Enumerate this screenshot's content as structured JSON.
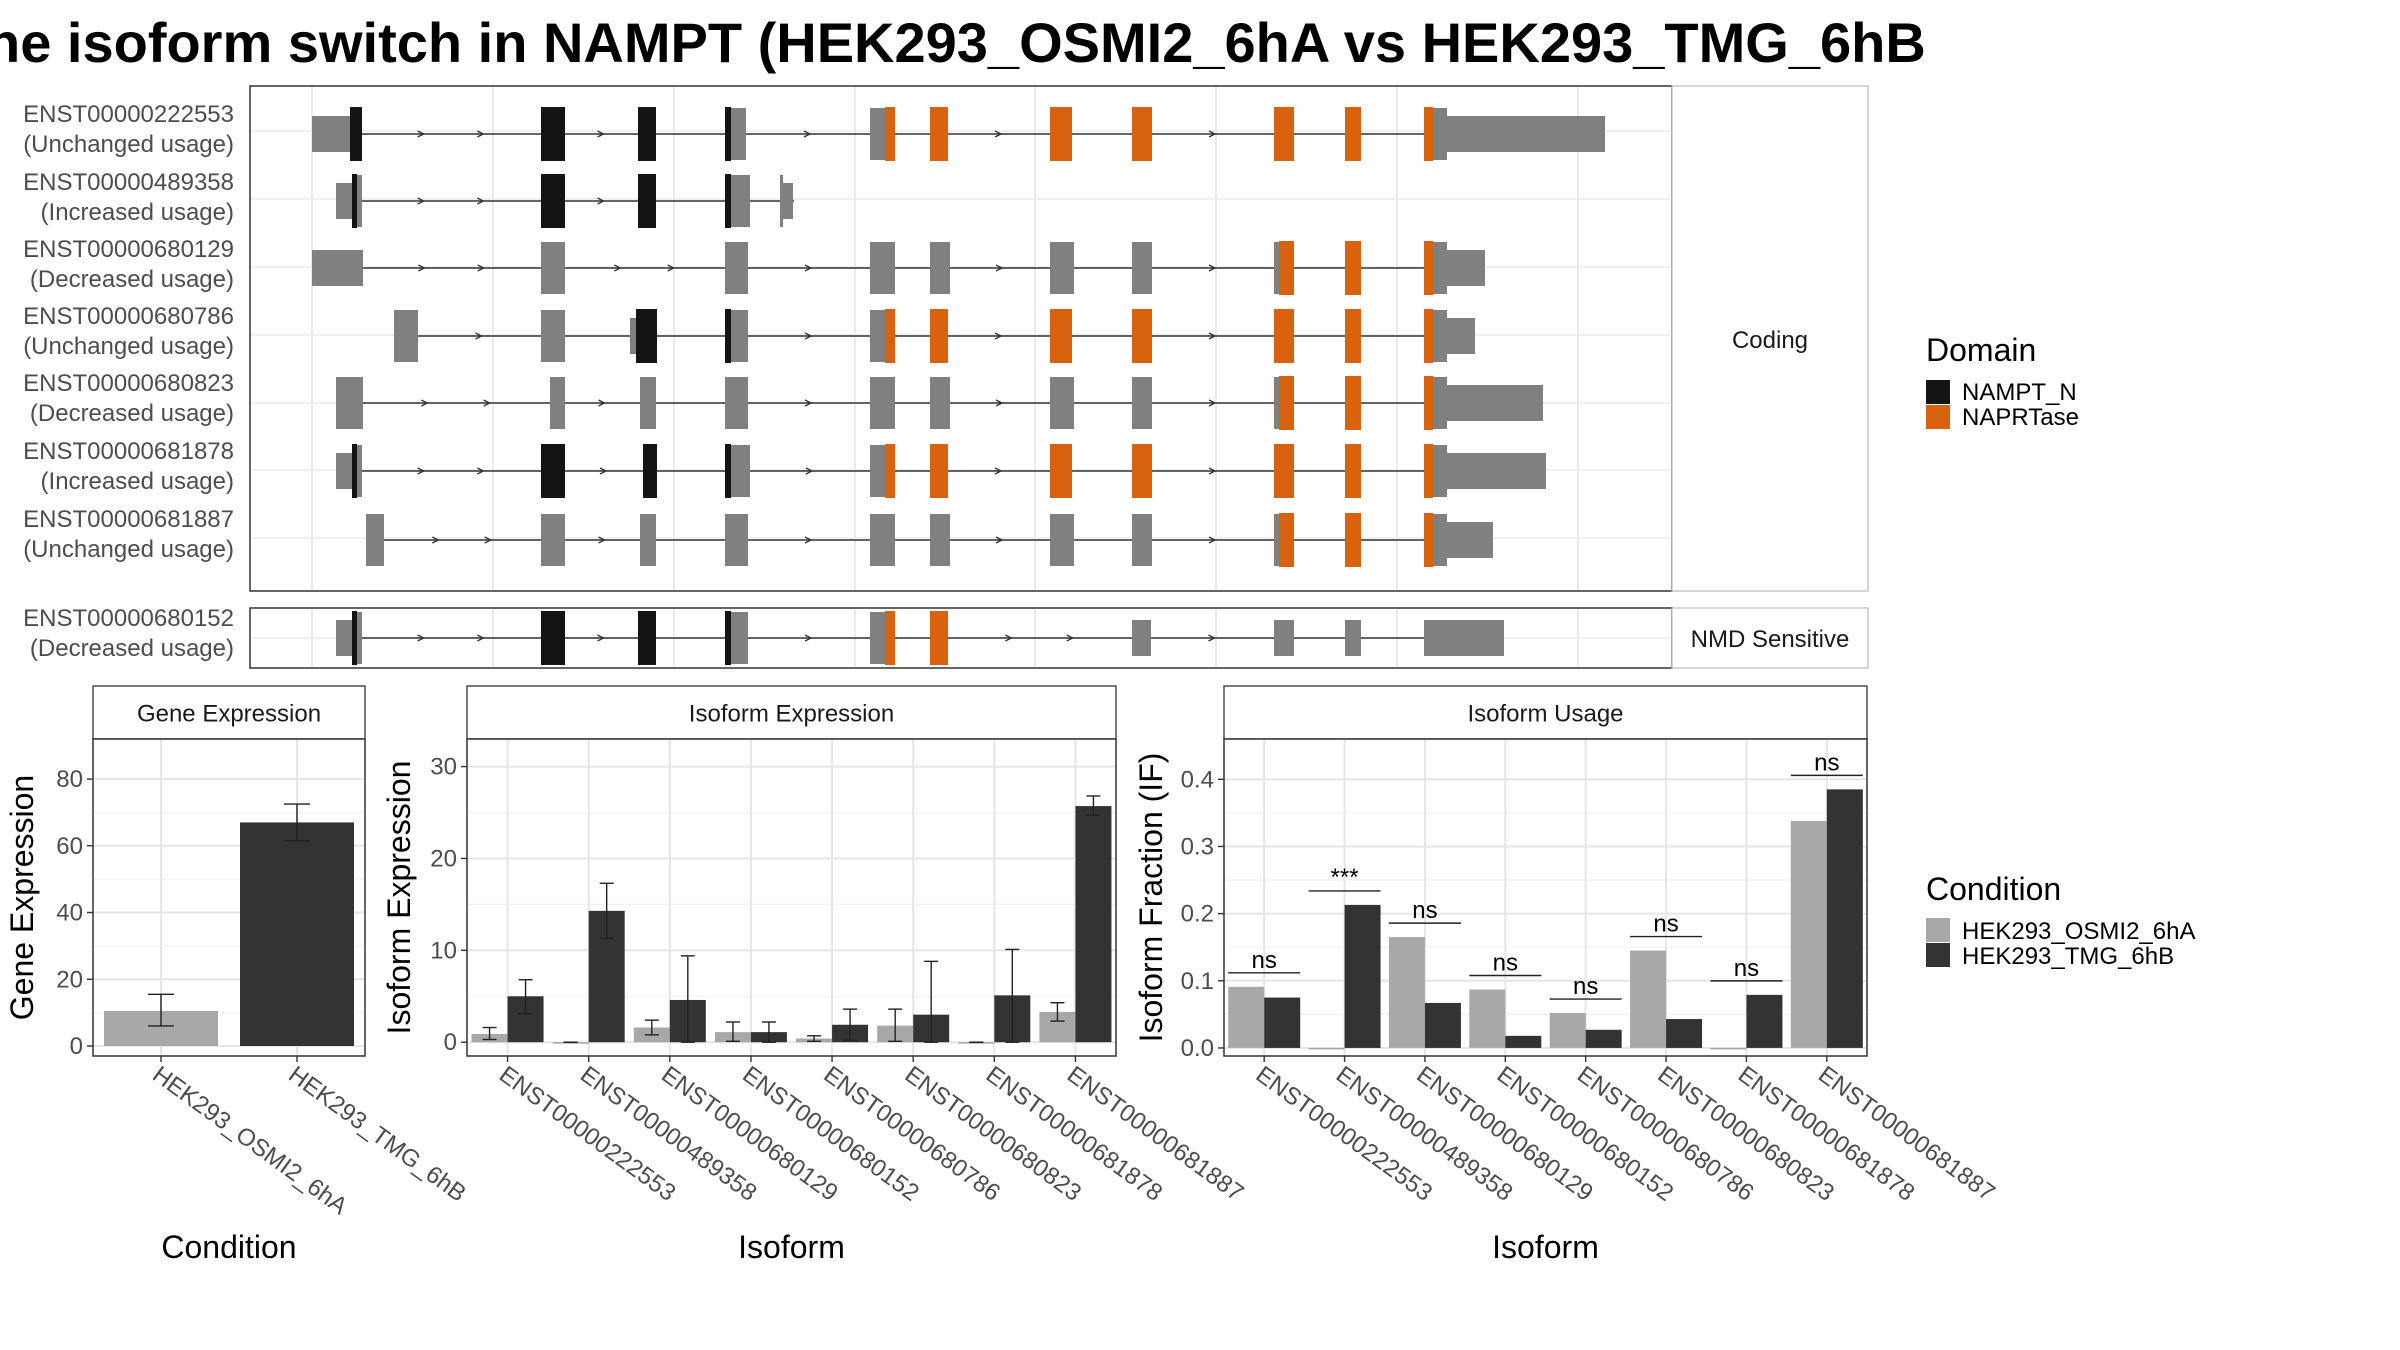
{
  "title": "he isoform switch in NAMPT (HEK293_OSMI2_6hA vs HEK293_TMG_6hB",
  "colors": {
    "cond_a": "#a8a8a8",
    "cond_b": "#333333",
    "nampt_n": "#141414",
    "naprtase": "#d9620f",
    "noncoding": "#808080"
  },
  "structure": {
    "strip_coding": "Coding",
    "strip_nmd": "NMD Sensitive",
    "coding": [
      {
        "id": "ENST00000222553",
        "usage": "(Unchanged usage)"
      },
      {
        "id": "ENST00000489358",
        "usage": "(Increased usage)"
      },
      {
        "id": "ENST00000680129",
        "usage": "(Decreased usage)"
      },
      {
        "id": "ENST00000680786",
        "usage": "(Unchanged usage)"
      },
      {
        "id": "ENST00000680823",
        "usage": "(Decreased usage)"
      },
      {
        "id": "ENST00000681878",
        "usage": "(Increased usage)"
      },
      {
        "id": "ENST00000681887",
        "usage": "(Unchanged usage)"
      }
    ],
    "nmd": [
      {
        "id": "ENST00000680152",
        "usage": "(Decreased usage)"
      }
    ]
  },
  "legend_domain": {
    "title": "Domain",
    "items": [
      {
        "label": "NAMPT_N",
        "color": "#141414"
      },
      {
        "label": "NAPRTase",
        "color": "#d9620f"
      }
    ]
  },
  "legend_condition": {
    "title": "Condition",
    "items": [
      {
        "label": "HEK293_OSMI2_6hA",
        "color": "#a8a8a8"
      },
      {
        "label": "HEK293_TMG_6hB",
        "color": "#333333"
      }
    ]
  },
  "chart_data": [
    {
      "type": "bar",
      "panel": "Gene Expression",
      "xlabel": "Condition",
      "ylabel": "Gene Expression",
      "categories": [
        "HEK293_OSMI2_6hA",
        "HEK293_TMG_6hB"
      ],
      "values": [
        10.5,
        67
      ],
      "error_low": [
        6,
        61.5
      ],
      "error_high": [
        15.5,
        72.5
      ],
      "ylim": [
        -3,
        92
      ],
      "yticks": [
        0,
        20,
        40,
        60,
        80
      ]
    },
    {
      "type": "bar",
      "panel": "Isoform Expression",
      "xlabel": "Isoform",
      "ylabel": "Isoform Expression",
      "categories": [
        "ENST00000222553",
        "ENST00000489358",
        "ENST00000680129",
        "ENST00000680152",
        "ENST00000680786",
        "ENST00000680823",
        "ENST00000681878",
        "ENST00000681887"
      ],
      "series": [
        {
          "name": "HEK293_OSMI2_6hA",
          "values": [
            0.9,
            0,
            1.6,
            1.1,
            0.4,
            1.8,
            0,
            3.3
          ],
          "error_low": [
            0.3,
            0,
            0.8,
            0.1,
            0.1,
            0.1,
            0,
            2.3
          ],
          "error_high": [
            1.6,
            0,
            2.4,
            2.2,
            0.7,
            3.6,
            0,
            4.3
          ]
        },
        {
          "name": "HEK293_TMG_6hB",
          "values": [
            5,
            14.3,
            4.6,
            1.1,
            1.9,
            3,
            5.1,
            25.7
          ],
          "error_low": [
            3.1,
            11.3,
            0,
            0,
            0.2,
            0,
            0,
            24.7
          ],
          "error_high": [
            6.8,
            17.3,
            9.4,
            2.2,
            3.6,
            8.8,
            10.1,
            26.8
          ]
        }
      ],
      "ylim": [
        -1.5,
        33
      ],
      "yticks": [
        0,
        10,
        20,
        30
      ]
    },
    {
      "type": "bar",
      "panel": "Isoform Usage",
      "xlabel": "Isoform",
      "ylabel": "Isoform Fraction (IF)",
      "categories": [
        "ENST00000222553",
        "ENST00000489358",
        "ENST00000680129",
        "ENST00000680152",
        "ENST00000680786",
        "ENST00000680823",
        "ENST00000681878",
        "ENST00000681887"
      ],
      "series": [
        {
          "name": "HEK293_OSMI2_6hA",
          "values": [
            0.091,
            0,
            0.165,
            0.087,
            0.052,
            0.145,
            0,
            0.338
          ]
        },
        {
          "name": "HEK293_TMG_6hB",
          "values": [
            0.075,
            0.213,
            0.067,
            0.018,
            0.027,
            0.043,
            0.079,
            0.385
          ]
        }
      ],
      "significance": [
        "ns",
        "***",
        "ns",
        "ns",
        "ns",
        "ns",
        "ns",
        "ns"
      ],
      "ylim": [
        -0.012,
        0.46
      ],
      "yticks": [
        0.0,
        0.1,
        0.2,
        0.3,
        0.4
      ],
      "ytick_labels": [
        "0.0",
        "0.1",
        "0.2",
        "0.3",
        "0.4"
      ]
    }
  ]
}
